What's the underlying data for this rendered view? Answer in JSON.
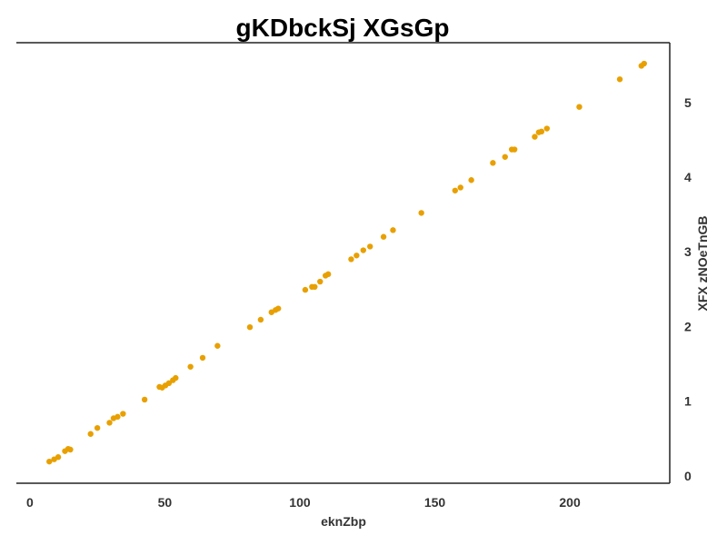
{
  "chart_data": {
    "type": "scatter",
    "title": "gKDbckSj XGsGp",
    "xlabel": "eknZbp",
    "ylabel": "XFX zNOeTnGB",
    "xlim": [
      -5,
      237
    ],
    "ylim": [
      -0.1,
      5.8
    ],
    "x_ticks": [
      0,
      50,
      100,
      150,
      200
    ],
    "y_ticks": [
      0,
      1,
      2,
      3,
      4,
      5
    ],
    "y_axis_position": "right",
    "grid": false,
    "marker_color": "#E8A000",
    "series": [
      {
        "points": [
          [
            7.2,
            0.19
          ],
          [
            9.0,
            0.22
          ],
          [
            10.5,
            0.25
          ],
          [
            13.0,
            0.33
          ],
          [
            14.2,
            0.36
          ],
          [
            15.0,
            0.35
          ],
          [
            22.5,
            0.56
          ],
          [
            25.0,
            0.64
          ],
          [
            29.5,
            0.71
          ],
          [
            31.0,
            0.77
          ],
          [
            32.5,
            0.79
          ],
          [
            34.5,
            0.83
          ],
          [
            42.5,
            1.02
          ],
          [
            48.0,
            1.19
          ],
          [
            49.0,
            1.18
          ],
          [
            50.2,
            1.21
          ],
          [
            51.5,
            1.24
          ],
          [
            53.0,
            1.28
          ],
          [
            54.0,
            1.31
          ],
          [
            59.5,
            1.46
          ],
          [
            64.0,
            1.58
          ],
          [
            69.5,
            1.74
          ],
          [
            81.5,
            1.99
          ],
          [
            85.5,
            2.09
          ],
          [
            89.5,
            2.19
          ],
          [
            91.0,
            2.22
          ],
          [
            92.0,
            2.24
          ],
          [
            102.0,
            2.49
          ],
          [
            104.5,
            2.53
          ],
          [
            105.5,
            2.53
          ],
          [
            107.5,
            2.6
          ],
          [
            109.5,
            2.68
          ],
          [
            110.5,
            2.7
          ],
          [
            119.0,
            2.9
          ],
          [
            121.0,
            2.95
          ],
          [
            123.5,
            3.02
          ],
          [
            126.0,
            3.07
          ],
          [
            131.0,
            3.2
          ],
          [
            134.5,
            3.29
          ],
          [
            145.0,
            3.52
          ],
          [
            157.5,
            3.82
          ],
          [
            159.5,
            3.86
          ],
          [
            163.5,
            3.96
          ],
          [
            171.5,
            4.19
          ],
          [
            176.0,
            4.27
          ],
          [
            178.5,
            4.37
          ],
          [
            179.5,
            4.37
          ],
          [
            187.0,
            4.54
          ],
          [
            188.5,
            4.6
          ],
          [
            189.5,
            4.61
          ],
          [
            191.5,
            4.65
          ],
          [
            203.5,
            4.94
          ],
          [
            218.5,
            5.31
          ],
          [
            226.5,
            5.49
          ],
          [
            227.5,
            5.52
          ]
        ]
      }
    ]
  }
}
